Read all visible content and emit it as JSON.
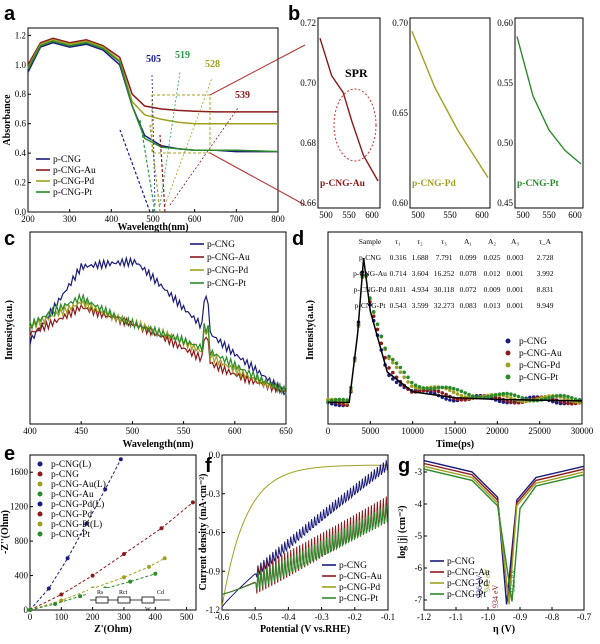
{
  "panels": {
    "a": {
      "label": "a",
      "xlabel": "Wavelength(nm)",
      "ylabel": "Absorbance",
      "xticks": [
        "200",
        "300",
        "400",
        "500",
        "600",
        "700",
        "800"
      ],
      "yticks": [
        "0.0",
        "0.2",
        "0.4",
        "0.6",
        "0.8",
        "1.0",
        "1.2"
      ],
      "legend": [
        "p-CNG",
        "p-CNG-Au",
        "p-CNG-Pd",
        "p-CNG-Pt"
      ],
      "edge_labels": [
        "505",
        "519",
        "528",
        "539"
      ]
    },
    "b": {
      "label": "b",
      "annotation": "SPR",
      "sub": [
        {
          "name": "p-CNG-Au",
          "yticks": [
            "0.66",
            "0.68",
            "0.70",
            "0.72"
          ],
          "xticks": [
            "500",
            "550",
            "600"
          ]
        },
        {
          "name": "p-CNG-Pd",
          "yticks": [
            "0.60",
            "0.65",
            "0.70"
          ],
          "xticks": [
            "500",
            "550",
            "600"
          ]
        },
        {
          "name": "p-CNG-Pt",
          "yticks": [
            "0.45",
            "0.50",
            "0.55",
            "0.60"
          ],
          "xticks": [
            "500",
            "550",
            "600"
          ]
        }
      ]
    },
    "c": {
      "label": "c",
      "xlabel": "Wavelength(nm)",
      "ylabel": "Intensity(a.u.)",
      "xticks": [
        "400",
        "450",
        "500",
        "550",
        "600",
        "650"
      ],
      "legend": [
        "p-CNG",
        "p-CNG-Au",
        "p-CNG-Pd",
        "p-CNG-Pt"
      ]
    },
    "d": {
      "label": "d",
      "xlabel": "Time(ps)",
      "ylabel": "Intensity(a.u.)",
      "xticks": [
        "0",
        "5000",
        "10000",
        "15000",
        "20000",
        "25000",
        "30000"
      ],
      "legend": [
        "p-CNG",
        "p-CNG-Au",
        "p-CNG-Pd",
        "p-CNG-Pt"
      ],
      "table": {
        "headers": [
          "Sample",
          "τ₁",
          "τ₂",
          "τ₃",
          "A₁",
          "A₂",
          "A₃",
          "τ_A"
        ],
        "rows": [
          [
            "p-CNG",
            "0.316",
            "1.688",
            "7.791",
            "0.099",
            "0.025",
            "0.003",
            "2.728"
          ],
          [
            "p-CNG-Au",
            "0.714",
            "3.604",
            "16.252",
            "0.078",
            "0.012",
            "0.001",
            "3.992"
          ],
          [
            "p-CNG-Pd",
            "0.811",
            "4.934",
            "30.118",
            "0.072",
            "0.009",
            "0.001",
            "8.831"
          ],
          [
            "p-CNG-Pt",
            "0.543",
            "3.599",
            "32.273",
            "0.083",
            "0.013",
            "0.001",
            "9.949"
          ]
        ]
      }
    },
    "e": {
      "label": "e",
      "xlabel": "Z'(Ohm)",
      "ylabel": "-Z''(Ohm)",
      "xticks": [
        "0",
        "100",
        "200",
        "300",
        "400",
        "500"
      ],
      "yticks": [
        "0",
        "400",
        "800",
        "1200",
        "1600"
      ],
      "legend": [
        "p-CNG(L)",
        "p-CNG",
        "p-CNG-Au(L)",
        "p-CNG-Au",
        "p-CNG-Pd(L)",
        "p-CNG-Pd",
        "p-CNG-Pt(L)",
        "p-CNG-Pt"
      ],
      "circuit": [
        "Rs",
        "Rct",
        "Cd",
        "W"
      ]
    },
    "f": {
      "label": "f",
      "xlabel": "Potential (V vs.RHE)",
      "ylabel": "Current density (mA·cm⁻²)",
      "xticks": [
        "-0.6",
        "-0.5",
        "-0.4",
        "-0.3",
        "-0.2",
        "-0.1"
      ],
      "yticks": [
        "-1.2",
        "-0.9",
        "-0.6",
        "-0.3",
        "0.0"
      ],
      "legend": [
        "p-CNG",
        "p-CNG-Au",
        "p-CNG-Pd",
        "p-CNG-Pt"
      ]
    },
    "g": {
      "label": "g",
      "xlabel": "η (V)",
      "ylabel": "log |j| (cm⁻²)",
      "xticks": [
        "-1.2",
        "-1.1",
        "-1.0",
        "-0.9",
        "-0.8",
        "-0.7"
      ],
      "yticks": [
        "-3",
        "-4",
        "-5",
        "-6",
        "-7"
      ],
      "legend": [
        "p-CNG",
        "p-CNG-Au",
        "p-CNG-Pd",
        "p-CNG-Pt"
      ],
      "annotations": [
        "942 eV",
        "936 eV",
        "934 eV",
        "925 eV"
      ]
    }
  },
  "colors": {
    "cng": "#1a1a7a",
    "au": "#8b1a1a",
    "pd": "#a0a020",
    "pt": "#2a8a2a"
  },
  "chart_data": [
    {
      "type": "line",
      "panel": "a",
      "xlim": [
        200,
        800
      ],
      "ylim": [
        0,
        1.25
      ],
      "series": [
        {
          "name": "p-CNG",
          "x": [
            200,
            230,
            260,
            300,
            340,
            380,
            420,
            450,
            480,
            520,
            560,
            600,
            650,
            700,
            800
          ],
          "y": [
            0.95,
            1.12,
            1.15,
            1.12,
            1.14,
            1.1,
            1.0,
            0.72,
            0.52,
            0.45,
            0.43,
            0.42,
            0.42,
            0.41,
            0.41
          ]
        },
        {
          "name": "p-CNG-Au",
          "x": [
            200,
            230,
            260,
            300,
            340,
            380,
            420,
            450,
            480,
            520,
            560,
            600,
            650,
            700,
            800
          ],
          "y": [
            1.0,
            1.15,
            1.18,
            1.15,
            1.17,
            1.13,
            1.05,
            0.8,
            0.72,
            0.7,
            0.69,
            0.685,
            0.68,
            0.68,
            0.68
          ]
        },
        {
          "name": "p-CNG-Pd",
          "x": [
            200,
            230,
            260,
            300,
            340,
            380,
            420,
            450,
            480,
            520,
            560,
            600,
            650,
            700,
            800
          ],
          "y": [
            0.98,
            1.14,
            1.17,
            1.14,
            1.16,
            1.12,
            1.03,
            0.75,
            0.66,
            0.63,
            0.61,
            0.6,
            0.6,
            0.6,
            0.6
          ]
        },
        {
          "name": "p-CNG-Pt",
          "x": [
            200,
            230,
            260,
            300,
            340,
            380,
            420,
            450,
            480,
            520,
            560,
            600,
            650,
            700,
            800
          ],
          "y": [
            0.97,
            1.13,
            1.16,
            1.13,
            1.15,
            1.11,
            1.02,
            0.72,
            0.5,
            0.44,
            0.43,
            0.42,
            0.42,
            0.42,
            0.41
          ]
        }
      ]
    },
    {
      "type": "line",
      "panel": "d",
      "xlim": [
        0,
        30000
      ],
      "series": [
        {
          "name": "p-CNG",
          "x": [
            0,
            2500,
            3500,
            4200,
            5000,
            7000,
            10000,
            15000,
            20000,
            30000
          ],
          "y": [
            0.05,
            0.05,
            0.5,
            1.0,
            0.65,
            0.25,
            0.12,
            0.08,
            0.07,
            0.06
          ]
        },
        {
          "name": "p-CNG-Au",
          "x": [
            0,
            2500,
            3500,
            4200,
            5000,
            7000,
            10000,
            15000,
            20000,
            30000
          ],
          "y": [
            0.05,
            0.05,
            0.5,
            1.0,
            0.68,
            0.28,
            0.13,
            0.09,
            0.07,
            0.06
          ]
        },
        {
          "name": "p-CNG-Pd",
          "x": [
            0,
            2500,
            3500,
            4200,
            5000,
            7000,
            10000,
            15000,
            20000,
            30000
          ],
          "y": [
            0.05,
            0.05,
            0.5,
            1.0,
            0.72,
            0.33,
            0.17,
            0.11,
            0.08,
            0.07
          ]
        },
        {
          "name": "p-CNG-Pt",
          "x": [
            0,
            2500,
            3500,
            4200,
            5000,
            7000,
            10000,
            15000,
            20000,
            30000
          ],
          "y": [
            0.05,
            0.05,
            0.5,
            1.0,
            0.74,
            0.35,
            0.18,
            0.12,
            0.09,
            0.07
          ]
        }
      ]
    },
    {
      "type": "scatter",
      "panel": "e",
      "xlim": [
        0,
        530
      ],
      "ylim": [
        0,
        1800
      ],
      "series": [
        {
          "name": "p-CNG",
          "x": [
            0,
            60,
            120,
            180,
            240,
            290
          ],
          "y": [
            0,
            250,
            600,
            1000,
            1400,
            1750
          ]
        },
        {
          "name": "p-CNG-Au",
          "x": [
            0,
            100,
            200,
            300,
            420,
            520
          ],
          "y": [
            0,
            180,
            400,
            650,
            950,
            1250
          ]
        },
        {
          "name": "p-CNG-Pd",
          "x": [
            0,
            100,
            200,
            300,
            380,
            430
          ],
          "y": [
            0,
            110,
            250,
            380,
            500,
            600
          ]
        },
        {
          "name": "p-CNG-Pt",
          "x": [
            0,
            80,
            160,
            240,
            320,
            400
          ],
          "y": [
            0,
            70,
            160,
            250,
            330,
            420
          ]
        }
      ]
    },
    {
      "type": "line",
      "panel": "g",
      "xlim": [
        -1.2,
        -0.7
      ],
      "ylim": [
        -7.5,
        -2
      ],
      "series": [
        {
          "name": "p-CNG",
          "x": [
            -1.2,
            -1.05,
            -0.97,
            -0.942,
            -0.91,
            -0.85,
            -0.7
          ],
          "y": [
            -2.2,
            -2.6,
            -3.5,
            -7.3,
            -3.6,
            -2.8,
            -2.4
          ]
        },
        {
          "name": "p-CNG-Au",
          "x": [
            -1.2,
            -1.05,
            -0.97,
            -0.936,
            -0.91,
            -0.85,
            -0.7
          ],
          "y": [
            -2.3,
            -2.7,
            -3.6,
            -7.2,
            -3.7,
            -2.9,
            -2.5
          ]
        },
        {
          "name": "p-CNG-Pd",
          "x": [
            -1.2,
            -1.05,
            -0.97,
            -0.934,
            -0.91,
            -0.85,
            -0.7
          ],
          "y": [
            -2.4,
            -2.8,
            -3.7,
            -7.3,
            -3.8,
            -3.0,
            -2.6
          ]
        },
        {
          "name": "p-CNG-Pt",
          "x": [
            -1.2,
            -1.05,
            -0.97,
            -0.925,
            -0.9,
            -0.85,
            -0.7
          ],
          "y": [
            -2.5,
            -2.9,
            -3.8,
            -7.2,
            -3.9,
            -3.1,
            -2.7
          ]
        }
      ]
    }
  ]
}
